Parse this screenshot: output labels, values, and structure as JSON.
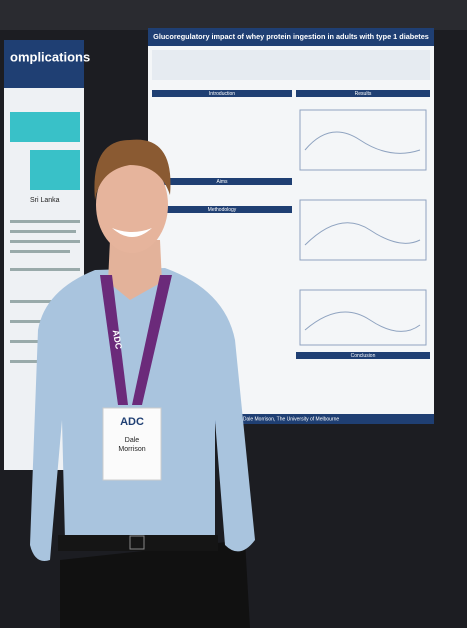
{
  "poster": {
    "title": "Glucoregulatory impact of whey protein ingestion in adults with type 1 diabetes",
    "sections": [
      "Introduction",
      "Aims",
      "Methodology",
      "Results",
      "Conclusion"
    ],
    "footer": "Dale Morrison, The University of Melbourne"
  },
  "left_poster": {
    "title": "omplications",
    "country": "Sri Lanka"
  },
  "lanyard": "ADC",
  "badge": {
    "logo": "ADC",
    "first_name": "Dale",
    "last_name": "Morrison"
  }
}
